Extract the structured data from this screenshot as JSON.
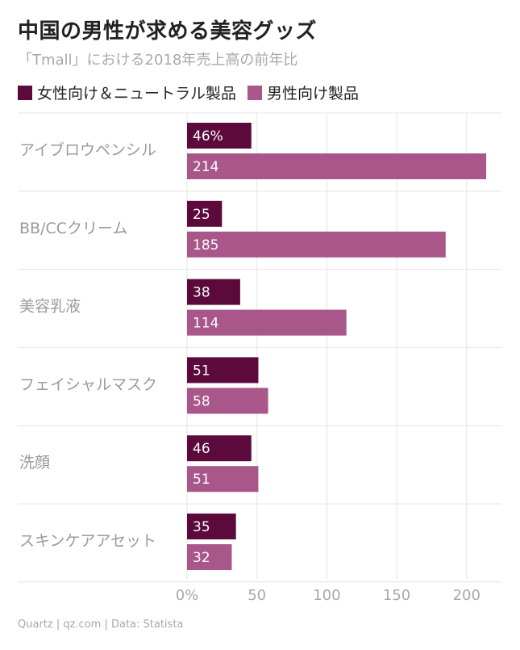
{
  "chart_data": {
    "type": "bar",
    "orientation": "horizontal",
    "title": "中国の男性が求める美容グッズ",
    "subtitle": "「Tmall」における2018年売上高の前年比",
    "categories": [
      "アイブロウペンシル",
      "BB/CCクリーム",
      "美容乳液",
      "フェイシャルマスク",
      "洗顔",
      "スキンケアアセット"
    ],
    "series": [
      {
        "name": "女性向け＆ニュートラル製品",
        "color": "#5c0a3c",
        "values": [
          46,
          25,
          38,
          51,
          46,
          35
        ],
        "labels": [
          "46%",
          "25",
          "38",
          "51",
          "46",
          "35"
        ]
      },
      {
        "name": "男性向け製品",
        "color": "#a9578a",
        "values": [
          214,
          185,
          114,
          58,
          51,
          32
        ],
        "labels": [
          "214",
          "185",
          "114",
          "58",
          "51",
          "32"
        ]
      }
    ],
    "xlim": [
      0,
      225
    ],
    "xticks": [
      0,
      50,
      100,
      150,
      200
    ],
    "xtick_labels": [
      "0%",
      "50",
      "100",
      "150",
      "200"
    ],
    "xlabel": "",
    "ylabel": "",
    "grid": true,
    "legend_position": "top-left"
  },
  "source": "Quartz | qz.com | Data: Statista"
}
